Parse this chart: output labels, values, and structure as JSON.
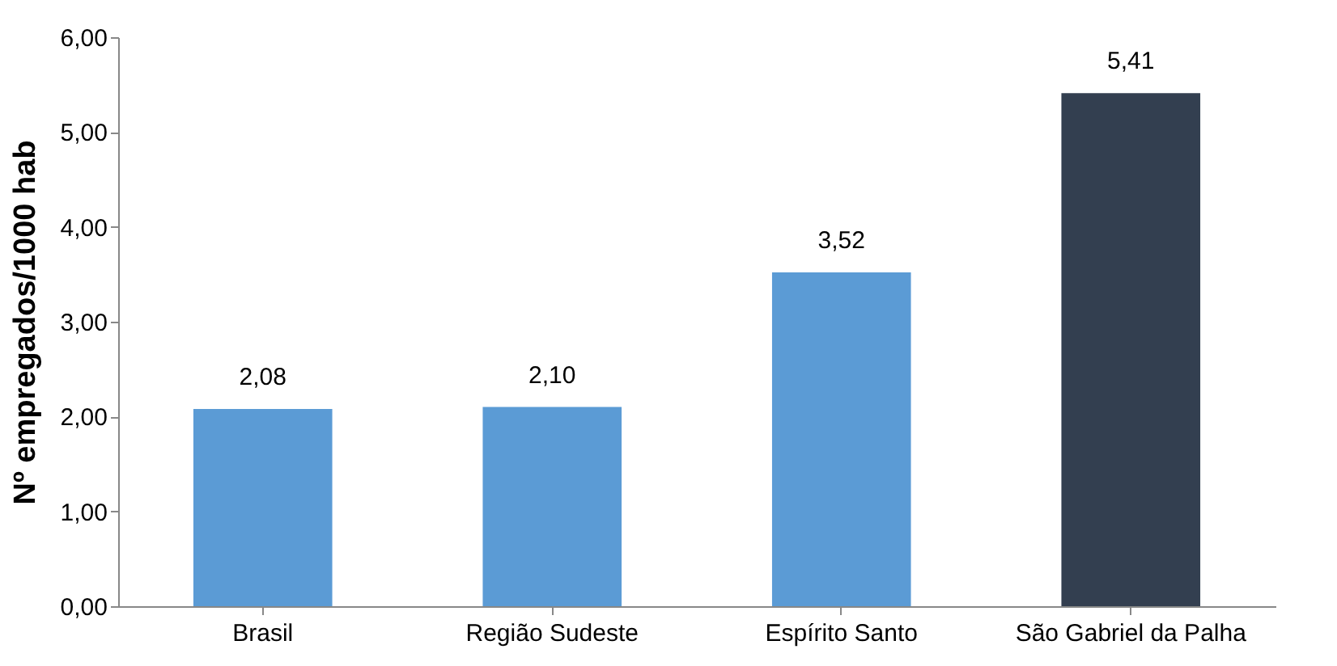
{
  "chart_data": {
    "type": "bar",
    "ylabel": "Nº empregados/1000 hab",
    "categories": [
      "Brasil",
      "Região Sudeste",
      "Espírito Santo",
      "São Gabriel da Palha"
    ],
    "values": [
      2.08,
      2.1,
      3.52,
      5.41
    ],
    "colors": [
      "#5b9bd5",
      "#5b9bd5",
      "#5b9bd5",
      "#333f50"
    ],
    "value_labels": [
      "2,08",
      "2,10",
      "3,52",
      "5,41"
    ],
    "ylim": [
      0,
      6
    ],
    "yticks": [
      {
        "value": 0,
        "label": "0,00"
      },
      {
        "value": 1,
        "label": "1,00"
      },
      {
        "value": 2,
        "label": "2,00"
      },
      {
        "value": 3,
        "label": "3,00"
      },
      {
        "value": 4,
        "label": "4,00"
      },
      {
        "value": 5,
        "label": "5,00"
      },
      {
        "value": 6,
        "label": "6,00"
      }
    ],
    "grid": false
  }
}
